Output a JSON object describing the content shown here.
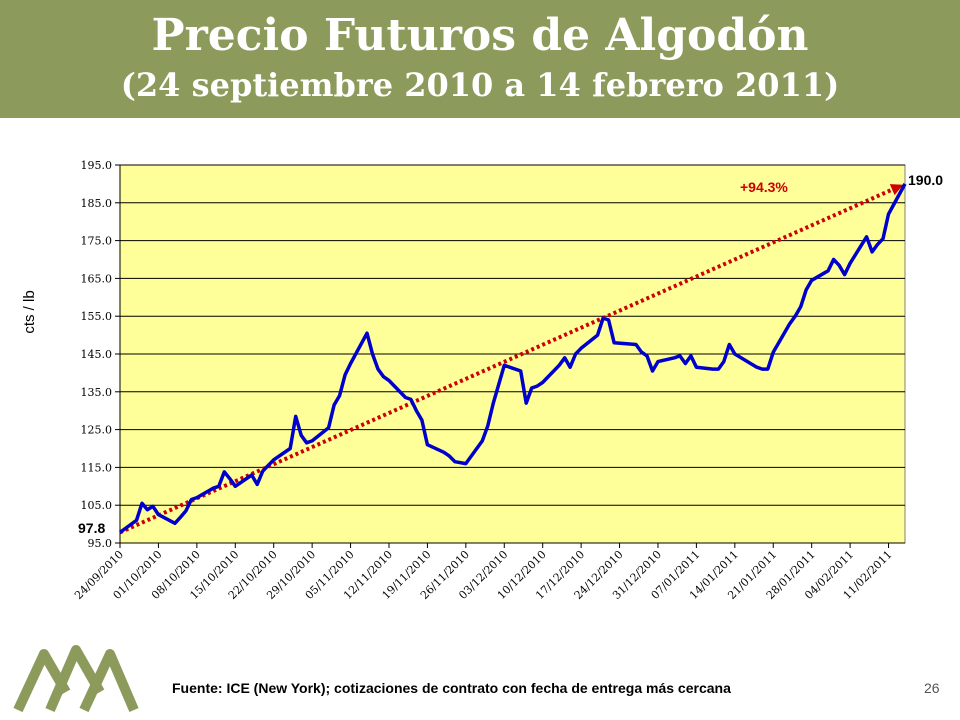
{
  "colors": {
    "banner": "#8c9a5b",
    "plot_bg": "#ffff99",
    "line": "#0000cc",
    "trend": "#cc0000",
    "logo": "#8c9a5b"
  },
  "header": {
    "title": "Precio Futuros de Algodón",
    "subtitle": "(24 septiembre 2010 a 14 febrero 2011)"
  },
  "footer": {
    "source": "Fuente: ICE (New York); cotizaciones de contrato con fecha de entrega más cercana",
    "page_number": "26"
  },
  "chart_data": {
    "type": "line",
    "ylabel": "cts / lb",
    "ylim": [
      95.0,
      195.0
    ],
    "yticks": [
      "95.0",
      "105.0",
      "115.0",
      "125.0",
      "135.0",
      "145.0",
      "155.0",
      "165.0",
      "175.0",
      "185.0",
      "195.0"
    ],
    "xlim": [
      "2010-09-24",
      "2011-02-14"
    ],
    "xticks": [
      "24/09/2010",
      "01/10/2010",
      "08/10/2010",
      "15/10/2010",
      "22/10/2010",
      "29/10/2010",
      "05/11/2010",
      "12/11/2010",
      "19/11/2010",
      "26/11/2010",
      "03/12/2010",
      "10/12/2010",
      "17/12/2010",
      "24/12/2010",
      "31/12/2010",
      "07/01/2011",
      "14/01/2011",
      "21/01/2011",
      "28/01/2011",
      "04/02/2011",
      "11/02/2011"
    ],
    "grid": "horizontal",
    "series": [
      {
        "x": [
          "2010-09-24",
          "2010-09-27",
          "2010-09-28",
          "2010-09-29",
          "2010-09-30",
          "2010-10-01",
          "2010-10-04",
          "2010-10-05",
          "2010-10-06",
          "2010-10-07",
          "2010-10-08",
          "2010-10-11",
          "2010-10-12",
          "2010-10-13",
          "2010-10-14",
          "2010-10-15",
          "2010-10-18",
          "2010-10-19",
          "2010-10-20",
          "2010-10-21",
          "2010-10-22",
          "2010-10-25",
          "2010-10-26",
          "2010-10-27",
          "2010-10-28",
          "2010-10-29",
          "2010-11-01",
          "2010-11-02",
          "2010-11-03",
          "2010-11-04",
          "2010-11-05",
          "2010-11-08",
          "2010-11-09",
          "2010-11-10",
          "2010-11-11",
          "2010-11-12",
          "2010-11-15",
          "2010-11-16",
          "2010-11-17",
          "2010-11-18",
          "2010-11-19",
          "2010-11-22",
          "2010-11-23",
          "2010-11-24",
          "2010-11-26",
          "2010-11-29",
          "2010-11-30",
          "2010-12-01",
          "2010-12-02",
          "2010-12-03",
          "2010-12-06",
          "2010-12-07",
          "2010-12-08",
          "2010-12-09",
          "2010-12-10",
          "2010-12-13",
          "2010-12-14",
          "2010-12-15",
          "2010-12-16",
          "2010-12-17",
          "2010-12-20",
          "2010-12-21",
          "2010-12-22",
          "2010-12-23",
          "2010-12-27",
          "2010-12-28",
          "2010-12-29",
          "2010-12-30",
          "2010-12-31",
          "2011-01-03",
          "2011-01-04",
          "2011-01-05",
          "2011-01-06",
          "2011-01-07",
          "2011-01-10",
          "2011-01-11",
          "2011-01-12",
          "2011-01-13",
          "2011-01-14",
          "2011-01-18",
          "2011-01-19",
          "2011-01-20",
          "2011-01-21",
          "2011-01-24",
          "2011-01-25",
          "2011-01-26",
          "2011-01-27",
          "2011-01-28",
          "2011-01-31",
          "2011-02-01",
          "2011-02-02",
          "2011-02-03",
          "2011-02-04",
          "2011-02-07",
          "2011-02-08",
          "2011-02-09",
          "2011-02-10",
          "2011-02-11",
          "2011-02-14"
        ],
        "y": [
          97.8,
          101.0,
          105.5,
          103.8,
          104.7,
          102.5,
          100.2,
          101.8,
          103.5,
          106.5,
          107.0,
          109.5,
          110.0,
          113.8,
          112.0,
          110.0,
          113.0,
          110.5,
          114.0,
          115.5,
          117.0,
          120.0,
          128.5,
          123.5,
          121.5,
          122.0,
          125.5,
          131.5,
          134.0,
          139.5,
          142.5,
          150.5,
          145.0,
          141.0,
          139.0,
          138.0,
          133.5,
          133.0,
          130.0,
          127.5,
          121.0,
          119.0,
          118.0,
          116.5,
          116.0,
          122.0,
          126.0,
          132.0,
          137.0,
          142.0,
          140.5,
          132.0,
          136.0,
          136.5,
          137.5,
          142.0,
          144.0,
          141.5,
          145.0,
          146.5,
          150.0,
          154.5,
          154.0,
          148.0,
          147.5,
          145.5,
          144.5,
          140.5,
          143.0,
          144.0,
          144.5,
          142.5,
          144.5,
          141.5,
          141.0,
          141.0,
          143.0,
          147.5,
          145.0,
          141.5,
          141.0,
          141.0,
          145.5,
          153.0,
          155.0,
          157.5,
          162.0,
          164.5,
          167.0,
          170.0,
          168.5,
          166.0,
          169.0,
          176.0,
          172.0,
          174.0,
          175.5,
          182.0,
          190.0
        ]
      }
    ],
    "trend": {
      "start": 97.8,
      "end": 190.0,
      "label": "+94.3%"
    },
    "annotations": {
      "start_label": "97.8",
      "end_label": "190.0"
    }
  }
}
